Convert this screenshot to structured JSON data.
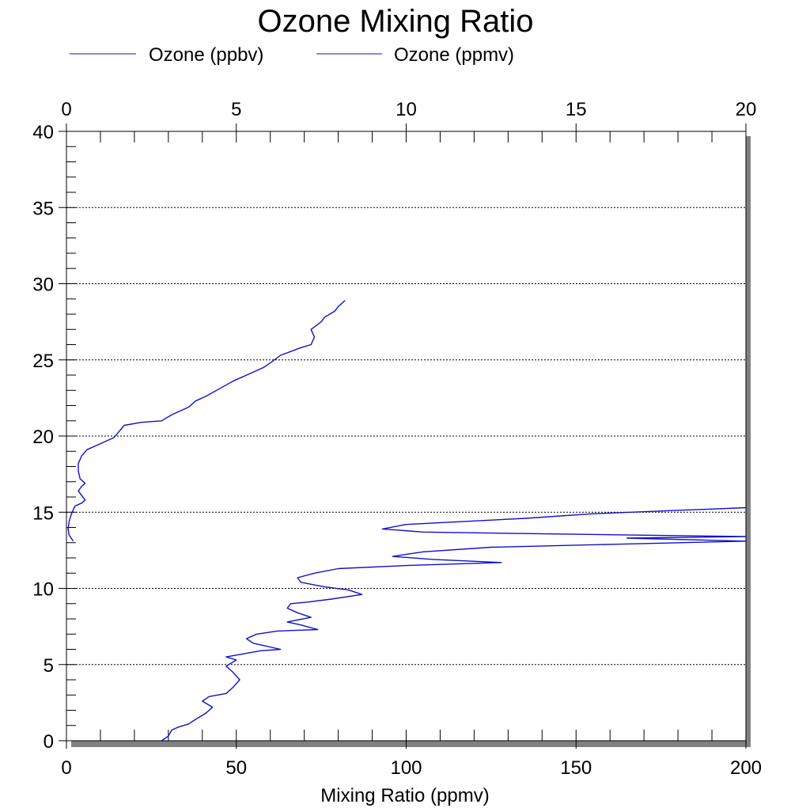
{
  "chart_data": {
    "type": "line",
    "title": "Ozone Mixing Ratio",
    "xlabel": "Mixing Ratio (ppmv)",
    "ylabel": "",
    "bottom_axis": {
      "range": [
        0,
        200
      ],
      "ticks": [
        0,
        50,
        100,
        150,
        200
      ],
      "labels": [
        "0",
        "50",
        "100",
        "150",
        "200"
      ]
    },
    "top_axis": {
      "range": [
        0,
        20
      ],
      "ticks": [
        0,
        5,
        10,
        15,
        20
      ],
      "labels": [
        "0",
        "5",
        "10",
        "15",
        "20"
      ]
    },
    "y_axis": {
      "range": [
        0,
        40
      ],
      "ticks": [
        0,
        5,
        10,
        15,
        20,
        25,
        30,
        35,
        40
      ],
      "labels": [
        "0",
        "5",
        "10",
        "15",
        "20",
        "25",
        "30",
        "35",
        "40"
      ]
    },
    "grid": "horizontal dotted",
    "legend": {
      "placement": "top",
      "entries": [
        "Ozone (ppbv)",
        "Ozone (ppmv)"
      ]
    },
    "series": [
      {
        "name": "Ozone (ppbv)",
        "color": "#1010cc",
        "axis": "bottom",
        "points": [
          [
            28,
            0
          ],
          [
            30,
            0.3
          ],
          [
            31,
            0.7
          ],
          [
            33,
            0.9
          ],
          [
            36,
            1.1
          ],
          [
            38,
            1.4
          ],
          [
            41,
            1.8
          ],
          [
            43,
            2.2
          ],
          [
            40,
            2.6
          ],
          [
            42,
            2.9
          ],
          [
            47,
            3.1
          ],
          [
            49,
            3.5
          ],
          [
            51,
            4.0
          ],
          [
            49,
            4.5
          ],
          [
            47,
            4.9
          ],
          [
            50,
            5.3
          ],
          [
            47,
            5.5
          ],
          [
            52,
            5.7
          ],
          [
            57,
            5.9
          ],
          [
            63,
            6.0
          ],
          [
            55,
            6.4
          ],
          [
            53,
            6.7
          ],
          [
            56,
            7.0
          ],
          [
            62,
            7.2
          ],
          [
            74,
            7.3
          ],
          [
            69,
            7.6
          ],
          [
            65,
            7.8
          ],
          [
            72,
            8.1
          ],
          [
            68,
            8.4
          ],
          [
            65,
            8.7
          ],
          [
            66,
            9.0
          ],
          [
            71,
            9.1
          ],
          [
            78,
            9.3
          ],
          [
            87,
            9.6
          ],
          [
            83,
            9.9
          ],
          [
            76,
            10.1
          ],
          [
            69,
            10.4
          ],
          [
            68,
            10.7
          ],
          [
            73,
            11.0
          ],
          [
            80,
            11.3
          ],
          [
            100,
            11.5
          ],
          [
            128,
            11.7
          ],
          [
            108,
            11.9
          ],
          [
            96,
            12.1
          ],
          [
            105,
            12.4
          ],
          [
            125,
            12.7
          ],
          [
            162,
            12.9
          ],
          [
            200,
            13.1
          ],
          [
            165,
            13.3
          ],
          [
            200,
            13.4
          ],
          [
            135,
            13.6
          ],
          [
            105,
            13.7
          ],
          [
            93,
            13.9
          ],
          [
            100,
            14.2
          ],
          [
            135,
            14.6
          ],
          [
            155,
            14.9
          ],
          [
            200,
            15.3
          ]
        ]
      },
      {
        "name": "Ozone (ppmv)",
        "color": "#1010cc",
        "axis": "top",
        "points": [
          [
            0.2,
            13.1
          ],
          [
            0.08,
            13.5
          ],
          [
            0.05,
            13.9
          ],
          [
            0.08,
            14.4
          ],
          [
            0.15,
            14.9
          ],
          [
            0.25,
            15.4
          ],
          [
            0.45,
            15.6
          ],
          [
            0.55,
            15.8
          ],
          [
            0.45,
            16.1
          ],
          [
            0.35,
            16.4
          ],
          [
            0.45,
            16.7
          ],
          [
            0.55,
            16.9
          ],
          [
            0.4,
            17.2
          ],
          [
            0.35,
            17.7
          ],
          [
            0.35,
            18.2
          ],
          [
            0.45,
            18.7
          ],
          [
            0.6,
            19.1
          ],
          [
            1.0,
            19.5
          ],
          [
            1.4,
            19.9
          ],
          [
            1.55,
            20.3
          ],
          [
            1.7,
            20.7
          ],
          [
            2.2,
            20.9
          ],
          [
            2.8,
            21.0
          ],
          [
            3.1,
            21.4
          ],
          [
            3.6,
            21.9
          ],
          [
            3.8,
            22.3
          ],
          [
            4.1,
            22.6
          ],
          [
            4.5,
            23.1
          ],
          [
            4.9,
            23.6
          ],
          [
            5.4,
            24.1
          ],
          [
            5.8,
            24.5
          ],
          [
            6.0,
            24.8
          ],
          [
            6.3,
            25.3
          ],
          [
            6.9,
            25.8
          ],
          [
            7.2,
            26.0
          ],
          [
            7.3,
            26.5
          ],
          [
            7.2,
            27.0
          ],
          [
            7.5,
            27.5
          ],
          [
            7.6,
            27.8
          ],
          [
            7.9,
            28.2
          ],
          [
            8.0,
            28.5
          ],
          [
            8.2,
            28.9
          ]
        ]
      }
    ]
  }
}
